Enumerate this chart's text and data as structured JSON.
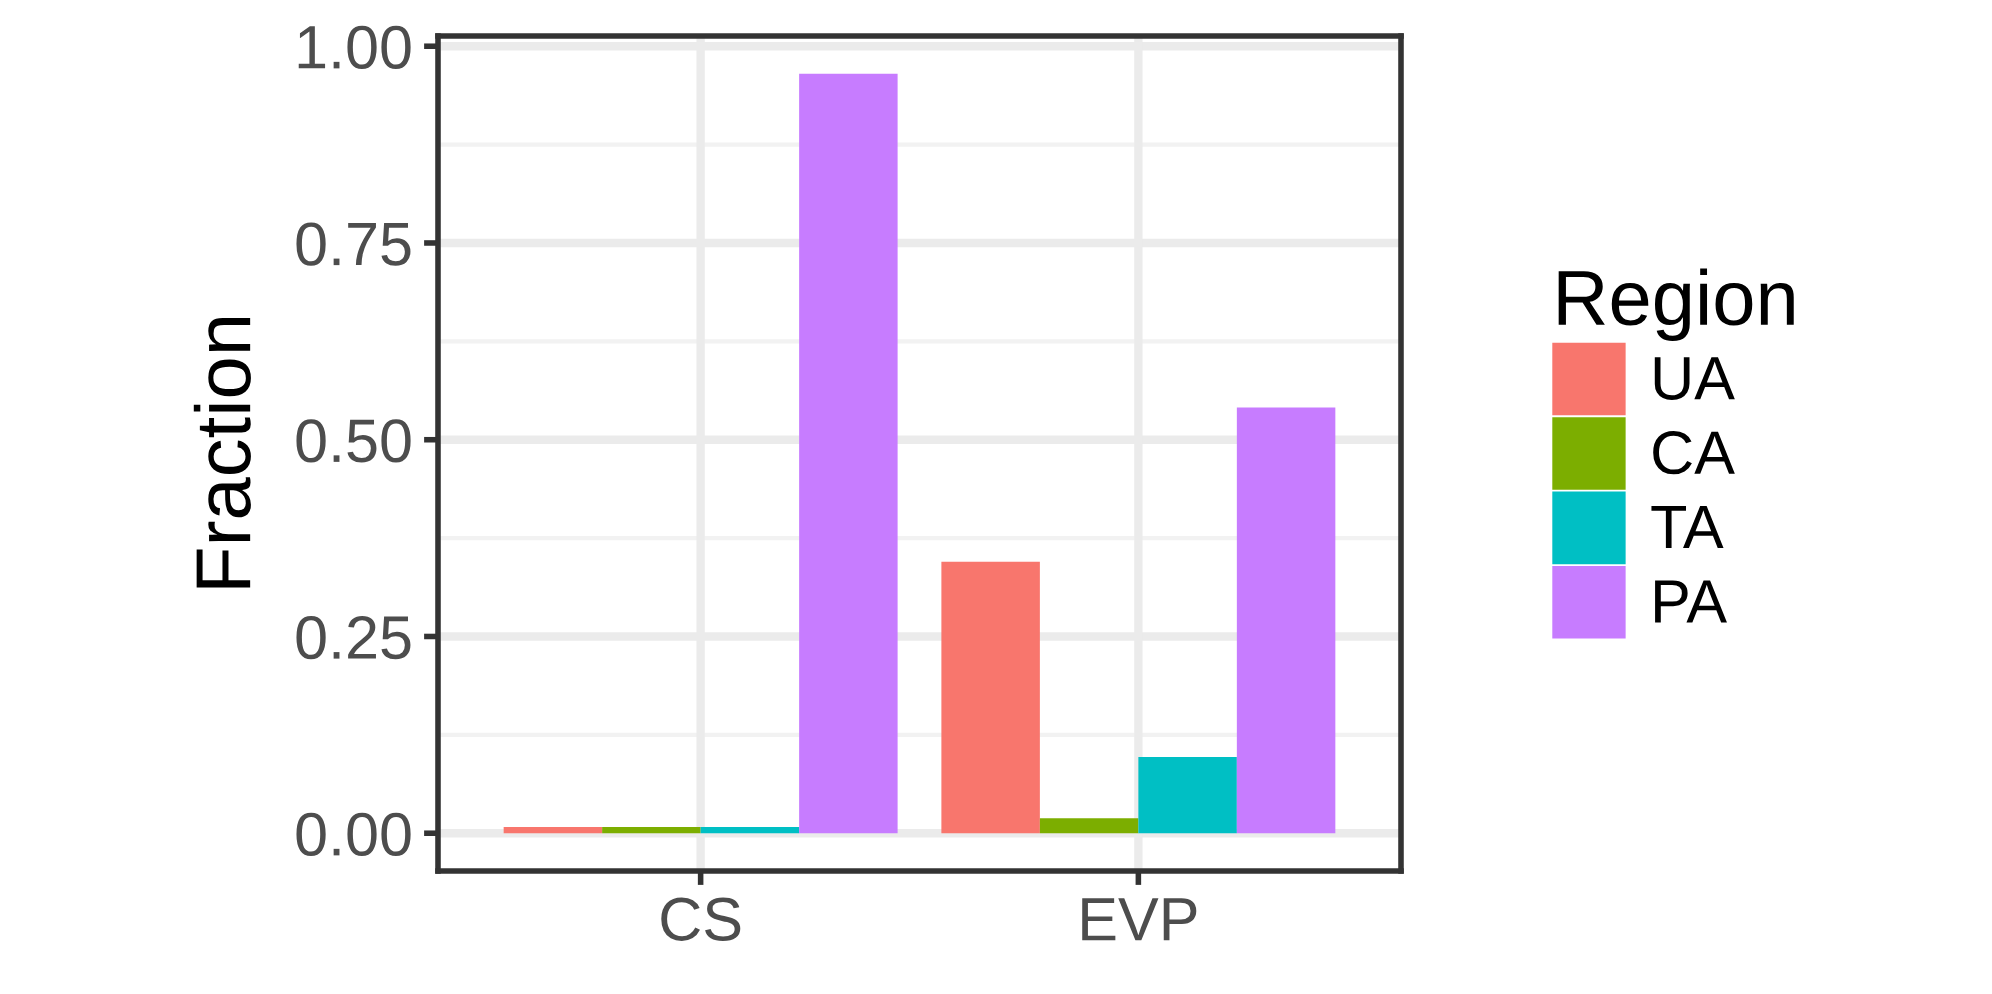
{
  "chart_data": {
    "type": "bar",
    "ylabel": "Fraction",
    "legend_title": "Region",
    "categories": [
      "CS",
      "EVP"
    ],
    "series": [
      {
        "name": "UA",
        "color": "#f8766d",
        "values": [
          0.008,
          0.345
        ]
      },
      {
        "name": "CA",
        "color": "#7cae00",
        "values": [
          0.008,
          0.019
        ]
      },
      {
        "name": "TA",
        "color": "#00bfc4",
        "values": [
          0.008,
          0.097
        ]
      },
      {
        "name": "PA",
        "color": "#c77cff",
        "values": [
          0.965,
          0.541
        ]
      }
    ],
    "ylim": [
      -0.048,
      1.013
    ],
    "yticks": [
      {
        "value": 0,
        "label": "0.00"
      },
      {
        "value": 0.25,
        "label": "0.25"
      },
      {
        "value": 0.5,
        "label": "0.50"
      },
      {
        "value": 0.75,
        "label": "0.75"
      },
      {
        "value": 1,
        "label": "1.00"
      }
    ],
    "grid": true,
    "legend": "right"
  }
}
